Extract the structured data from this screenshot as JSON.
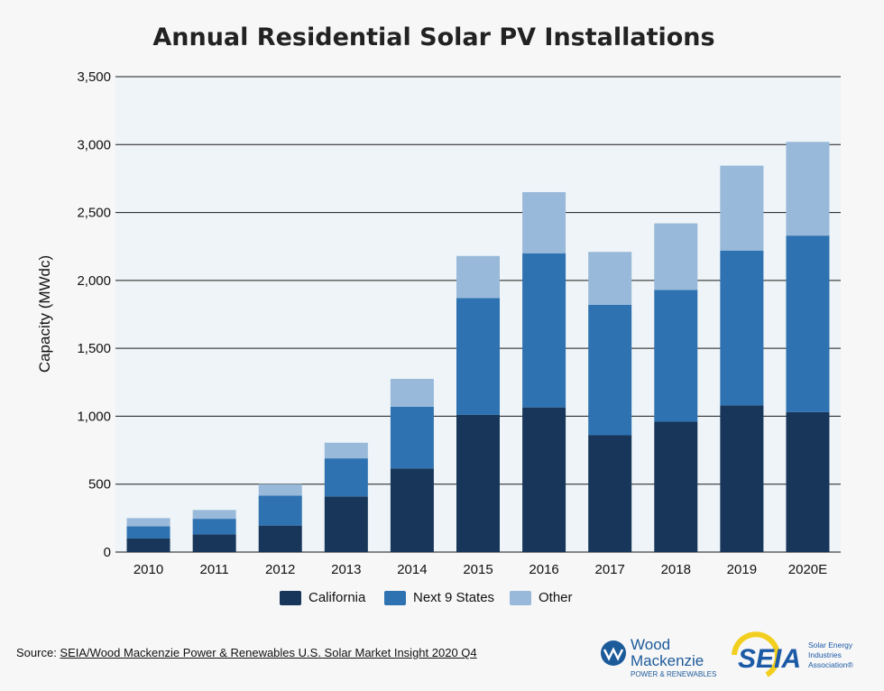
{
  "chart_data": {
    "type": "bar",
    "stacked": true,
    "title": "Annual Residential Solar PV Installations",
    "ylabel": "Capacity (MWdc)",
    "xlabel": "",
    "categories": [
      "2010",
      "2011",
      "2012",
      "2013",
      "2014",
      "2015",
      "2016",
      "2017",
      "2018",
      "2019",
      "2020E"
    ],
    "ylim": [
      0,
      3500
    ],
    "yticks": [
      0,
      500,
      1000,
      1500,
      2000,
      2500,
      3000,
      3500
    ],
    "ytick_labels": [
      "0",
      "500",
      "1,000",
      "1,500",
      "2,000",
      "2,500",
      "3,000",
      "3,500"
    ],
    "grid": true,
    "legend_position": "bottom",
    "series": [
      {
        "name": "California",
        "color": "#17365a",
        "values": [
          100,
          130,
          195,
          410,
          615,
          1010,
          1065,
          860,
          960,
          1080,
          1030
        ]
      },
      {
        "name": "Next 9 States",
        "color": "#2e72b1",
        "values": [
          90,
          115,
          220,
          280,
          455,
          860,
          1135,
          960,
          970,
          1140,
          1300
        ]
      },
      {
        "name": "Other",
        "color": "#98b9d9",
        "values": [
          60,
          65,
          85,
          115,
          205,
          310,
          450,
          390,
          490,
          625,
          690
        ]
      }
    ]
  },
  "footer": {
    "source_prefix": "Source: ",
    "source_link": "SEIA/Wood Mackenzie Power & Renewables U.S. Solar Market Insight 2020 Q4"
  },
  "logos": {
    "wood_mackenzie": {
      "line1": "Wood",
      "line2": "Mackenzie",
      "line3": "POWER & RENEWABLES",
      "color": "#1c5a9a"
    },
    "seia": {
      "text": "SEIA",
      "tag1": "Solar Energy",
      "tag2": "Industries",
      "tag3": "Association®",
      "color": "#1c5aa6",
      "accent": "#f2cf1f"
    }
  },
  "colors": {
    "plot_background": "#eef4f8",
    "gridline": "#1a1a1a"
  }
}
